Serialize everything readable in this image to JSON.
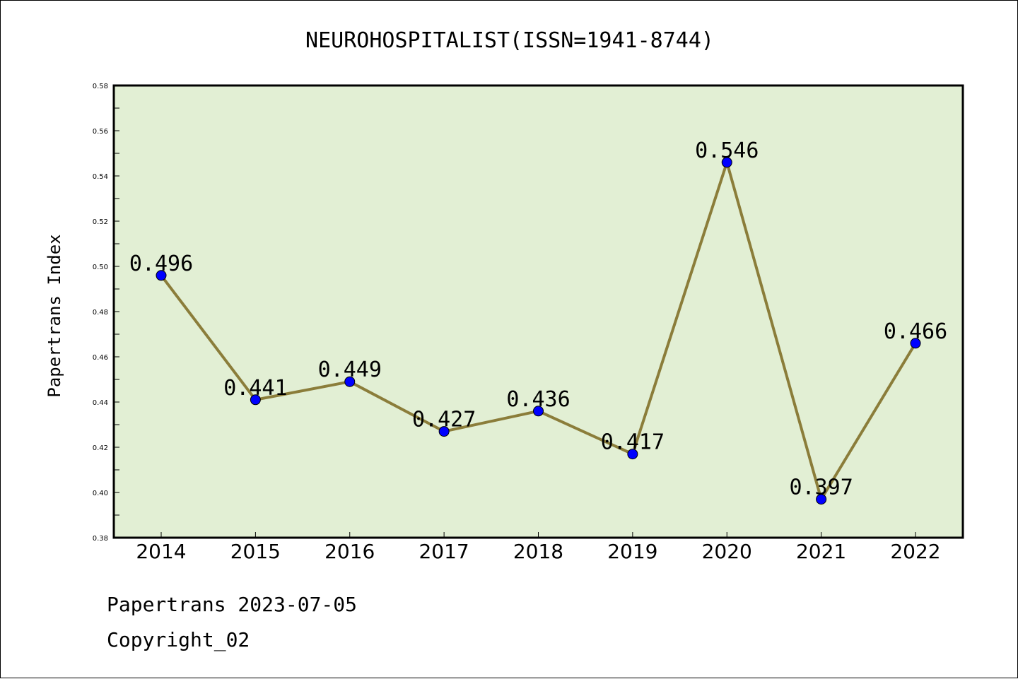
{
  "chart_data": {
    "type": "line",
    "title": "NEUROHOSPITALIST(ISSN=1941-8744)",
    "xlabel": "",
    "ylabel": "Papertrans Index",
    "categories": [
      "2014",
      "2015",
      "2016",
      "2017",
      "2018",
      "2019",
      "2020",
      "2021",
      "2022"
    ],
    "series": [
      {
        "values": [
          0.496,
          0.441,
          0.449,
          0.427,
          0.436,
          0.417,
          0.546,
          0.397,
          0.466
        ],
        "labels": [
          "0.496",
          "0.441",
          "0.449",
          "0.427",
          "0.436",
          "0.417",
          "0.546",
          "0.397",
          "0.466"
        ],
        "line_color": "#8b7d3a",
        "marker_color": "#0000ff"
      }
    ],
    "ylim": [
      0.38,
      0.58
    ],
    "yticks": [
      "0.38",
      "0.40",
      "0.42",
      "0.44",
      "0.46",
      "0.48",
      "0.50",
      "0.52",
      "0.54",
      "0.56",
      "0.58"
    ],
    "plot_background": "#e2efd4",
    "grid": false,
    "legend": "none"
  },
  "footer": {
    "line1": "Papertrans 2023-07-05",
    "line2": "Copyright_02"
  }
}
